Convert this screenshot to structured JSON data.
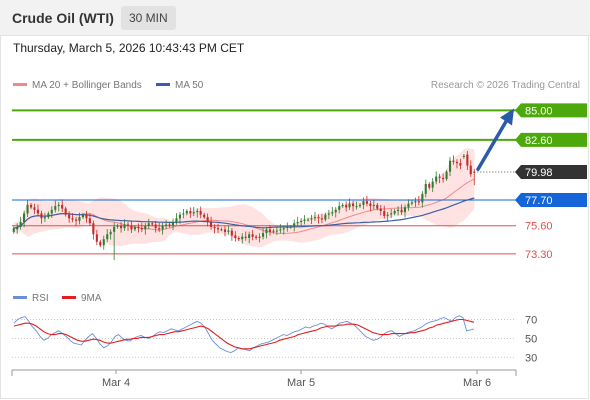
{
  "header": {
    "title": "Crude Oil (WTI)",
    "timeframe": "30 MIN"
  },
  "timestamp": "Thursday, March 5, 2026 10:43:43 PM CET",
  "legend": {
    "ma20": "MA 20 + Bollinger Bands",
    "ma50": "MA 50",
    "rsi": "RSI",
    "rsi_ma": "9MA"
  },
  "copyright": "Research © 2026 Trading Central",
  "colors": {
    "up_candle": "#2e7d32",
    "down_candle": "#c62828",
    "bollinger": "#ffd6d6",
    "ma20": "#f08a8a",
    "ma50": "#3a5fa8",
    "target": "#4ca80b",
    "pivot": "#1565d8",
    "support": "#e05050",
    "price_tag": "#333333",
    "arrow": "#2a5aa8",
    "rsi": "#6a8fd8",
    "rsi_ma": "#e02020"
  },
  "chart_data": [
    {
      "type": "candlestick",
      "title": "",
      "x_ticks": [
        "Mar 4",
        "Mar 5",
        "Mar 6"
      ],
      "ylim": [
        71.5,
        86.5
      ],
      "grid": false,
      "legend_position": "top-left",
      "last_price": 79.98,
      "levels": [
        {
          "value": 85.0,
          "label": "85.00",
          "role": "target"
        },
        {
          "value": 82.6,
          "label": "82.60",
          "role": "target"
        },
        {
          "value": 77.7,
          "label": "77.70",
          "role": "pivot"
        },
        {
          "value": 75.6,
          "label": "75.60",
          "role": "support"
        },
        {
          "value": 73.3,
          "label": "73.30",
          "role": "support"
        }
      ],
      "price_label": "79.98",
      "closes": [
        75.4,
        75.5,
        75.9,
        76.6,
        77.3,
        77.1,
        76.9,
        76.6,
        76.2,
        76.3,
        76.6,
        76.9,
        77.2,
        77.3,
        77.0,
        76.5,
        76.2,
        76.1,
        76.0,
        76.3,
        76.5,
        76.2,
        75.8,
        74.9,
        74.3,
        74.0,
        74.5,
        74.9,
        75.1,
        75.5,
        75.6,
        75.4,
        75.7,
        75.6,
        75.3,
        75.5,
        75.4,
        75.3,
        75.6,
        75.8,
        75.7,
        75.4,
        75.3,
        75.6,
        75.7,
        75.6,
        75.9,
        76.2,
        76.5,
        76.6,
        76.8,
        76.6,
        76.7,
        76.8,
        76.5,
        76.3,
        75.9,
        75.5,
        75.4,
        75.3,
        75.3,
        75.1,
        75.2,
        74.8,
        74.6,
        74.5,
        74.7,
        74.6,
        74.9,
        74.7,
        74.6,
        74.7,
        75.0,
        75.3,
        75.1,
        75.2,
        75.2,
        75.3,
        75.4,
        75.5,
        75.5,
        75.8,
        75.9,
        76.0,
        76.1,
        76.1,
        76.2,
        76.3,
        76.2,
        76.1,
        76.5,
        76.6,
        76.7,
        76.9,
        77.2,
        77.3,
        77.1,
        77.4,
        77.2,
        77.2,
        77.3,
        77.6,
        77.4,
        77.2,
        77.3,
        77.0,
        76.8,
        76.4,
        76.5,
        76.6,
        76.8,
        76.9,
        76.7,
        77.1,
        77.4,
        77.5,
        77.6,
        77.5,
        78.2,
        79.0,
        78.7,
        79.2,
        79.6,
        79.5,
        79.4,
        80.0,
        80.9,
        80.8,
        80.7,
        80.5,
        81.3,
        80.5,
        79.8,
        79.98
      ],
      "opens": [
        75.1,
        75.3,
        75.5,
        75.9,
        76.6,
        77.3,
        77.1,
        76.9,
        76.6,
        76.2,
        76.3,
        76.6,
        76.9,
        77.2,
        77.3,
        77.0,
        76.5,
        76.2,
        76.1,
        76.0,
        76.3,
        76.5,
        76.2,
        75.8,
        74.9,
        74.3,
        74.0,
        74.5,
        74.9,
        75.1,
        75.5,
        75.6,
        75.4,
        75.7,
        75.6,
        75.3,
        75.5,
        75.4,
        75.3,
        75.6,
        75.8,
        75.7,
        75.4,
        75.3,
        75.6,
        75.7,
        75.6,
        75.9,
        76.2,
        76.5,
        76.6,
        76.8,
        76.6,
        76.7,
        76.8,
        76.5,
        76.3,
        75.9,
        75.5,
        75.4,
        75.3,
        75.3,
        75.1,
        75.2,
        74.8,
        74.6,
        74.5,
        74.7,
        74.6,
        74.9,
        74.7,
        74.6,
        74.7,
        75.0,
        75.3,
        75.1,
        75.2,
        75.2,
        75.3,
        75.4,
        75.5,
        75.5,
        75.8,
        75.9,
        76.0,
        76.1,
        76.1,
        76.2,
        76.3,
        76.2,
        76.1,
        76.5,
        76.6,
        76.7,
        76.9,
        77.2,
        77.3,
        77.1,
        77.4,
        77.2,
        77.2,
        77.3,
        77.6,
        77.4,
        77.2,
        77.3,
        77.0,
        76.8,
        76.4,
        76.5,
        76.6,
        76.8,
        76.9,
        76.7,
        77.1,
        77.4,
        77.5,
        77.6,
        77.5,
        78.2,
        79.0,
        78.7,
        79.2,
        79.6,
        79.5,
        79.4,
        80.0,
        80.9,
        80.8,
        80.7,
        81.2,
        81.4,
        80.5,
        80.0
      ],
      "low_of_range": 72.8,
      "high_of_range": 81.5
    },
    {
      "type": "line",
      "title": "",
      "ylim": [
        25,
        80
      ],
      "y_ticks": [
        70,
        50,
        30
      ],
      "reference_lines": [
        70,
        50,
        30
      ],
      "series": [
        {
          "name": "RSI",
          "values": [
            66,
            70,
            72,
            73,
            68,
            62,
            58,
            52,
            48,
            50,
            54,
            56,
            58,
            55,
            52,
            48,
            45,
            44,
            43,
            48,
            52,
            55,
            50,
            44,
            40,
            42,
            46,
            52,
            54,
            50,
            48,
            47,
            50,
            52,
            53,
            51,
            50,
            52,
            55,
            57,
            56,
            58,
            60,
            59,
            58,
            60,
            62,
            64,
            66,
            68,
            66,
            62,
            55,
            48,
            44,
            40,
            38,
            36,
            35,
            37,
            40,
            39,
            38,
            37,
            40,
            42,
            44,
            45,
            46,
            48,
            50,
            52,
            54,
            53,
            55,
            57,
            58,
            60,
            62,
            61,
            63,
            64,
            66,
            65,
            62,
            60,
            63,
            66,
            67,
            68,
            66,
            64,
            60,
            56,
            52,
            50,
            48,
            49,
            51,
            55,
            57,
            58,
            55,
            52,
            54,
            56,
            57,
            58,
            60,
            62,
            65,
            67,
            68,
            69,
            71,
            72,
            70,
            68,
            72,
            74,
            72,
            58,
            59,
            60
          ]
        },
        {
          "name": "9MA",
          "values": [
            63,
            64,
            65,
            66,
            66,
            65,
            63,
            60,
            57,
            55,
            54,
            54,
            55,
            55,
            54,
            52,
            50,
            48,
            47,
            47,
            48,
            49,
            49,
            48,
            46,
            45,
            45,
            46,
            47,
            48,
            49,
            49,
            50,
            50,
            51,
            51,
            51,
            52,
            53,
            54,
            54,
            55,
            56,
            57,
            57,
            58,
            59,
            60,
            61,
            62,
            63,
            62,
            60,
            57,
            54,
            51,
            48,
            45,
            43,
            41,
            40,
            39,
            39,
            39,
            40,
            41,
            42,
            43,
            44,
            45,
            46,
            48,
            49,
            50,
            51,
            52,
            54,
            55,
            56,
            57,
            58,
            59,
            61,
            62,
            63,
            63,
            63,
            64,
            64,
            65,
            65,
            65,
            64,
            62,
            60,
            58,
            56,
            55,
            54,
            54,
            54,
            55,
            55,
            55,
            55,
            55,
            56,
            56,
            57,
            58,
            59,
            61,
            62,
            64,
            65,
            66,
            67,
            68,
            69,
            70,
            70,
            69,
            68,
            67
          ]
        }
      ],
      "legend": [
        "RSI",
        "9MA"
      ]
    }
  ]
}
